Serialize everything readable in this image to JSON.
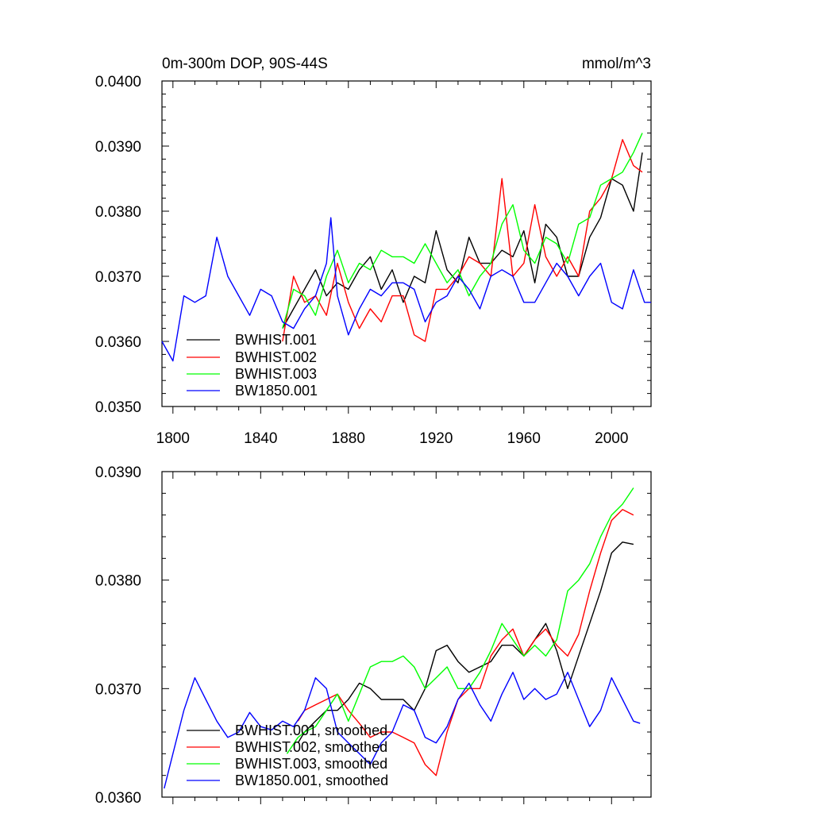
{
  "chart_data": [
    {
      "type": "line",
      "title": "0m-300m DOP, 90S-44S",
      "units": "mmol/m^3",
      "xlim": [
        1795,
        2018
      ],
      "ylim": [
        0.035,
        0.04
      ],
      "yticks": [
        "0.0350",
        "0.0360",
        "0.0370",
        "0.0380",
        "0.0390",
        "0.0400"
      ],
      "yticks_values": [
        0.035,
        0.036,
        0.037,
        0.038,
        0.039,
        0.04
      ],
      "xticks": [
        "1800",
        "1840",
        "1880",
        "1920",
        "1960",
        "2000"
      ],
      "xticks_values": [
        1800,
        1840,
        1880,
        1920,
        1960,
        2000
      ],
      "legend": {
        "placement": "bottom-left"
      },
      "series": [
        {
          "name": "BWHIST.001",
          "color": "#000000",
          "x": [
            1850,
            1855,
            1860,
            1865,
            1870,
            1875,
            1880,
            1885,
            1890,
            1895,
            1900,
            1905,
            1910,
            1915,
            1920,
            1925,
            1930,
            1935,
            1940,
            1945,
            1950,
            1955,
            1960,
            1965,
            1970,
            1975,
            1980,
            1985,
            1990,
            1995,
            2000,
            2005,
            2010,
            2014
          ],
          "y": [
            0.0362,
            0.0365,
            0.0368,
            0.0371,
            0.0367,
            0.0369,
            0.0368,
            0.0371,
            0.0373,
            0.0368,
            0.0371,
            0.0366,
            0.037,
            0.0369,
            0.0377,
            0.0371,
            0.0369,
            0.0376,
            0.0372,
            0.0372,
            0.0374,
            0.0373,
            0.0377,
            0.0369,
            0.0378,
            0.0376,
            0.037,
            0.037,
            0.0376,
            0.0379,
            0.0385,
            0.0384,
            0.038,
            0.0389
          ]
        },
        {
          "name": "BWHIST.002",
          "color": "#ff0000",
          "x": [
            1850,
            1855,
            1860,
            1865,
            1870,
            1875,
            1880,
            1885,
            1890,
            1895,
            1900,
            1905,
            1910,
            1915,
            1920,
            1925,
            1930,
            1935,
            1940,
            1945,
            1950,
            1955,
            1960,
            1965,
            1970,
            1975,
            1980,
            1985,
            1990,
            1995,
            2000,
            2005,
            2010,
            2014
          ],
          "y": [
            0.036,
            0.037,
            0.0366,
            0.0367,
            0.0364,
            0.0372,
            0.0366,
            0.0362,
            0.0365,
            0.0363,
            0.0367,
            0.0367,
            0.0361,
            0.036,
            0.0368,
            0.0368,
            0.037,
            0.0373,
            0.0372,
            0.037,
            0.0385,
            0.037,
            0.0372,
            0.0381,
            0.0373,
            0.037,
            0.0373,
            0.037,
            0.038,
            0.0382,
            0.0385,
            0.0391,
            0.0387,
            0.0386
          ]
        },
        {
          "name": "BWHIST.003",
          "color": "#00ff00",
          "x": [
            1850,
            1855,
            1860,
            1865,
            1870,
            1875,
            1880,
            1885,
            1890,
            1895,
            1900,
            1905,
            1910,
            1915,
            1920,
            1925,
            1930,
            1935,
            1940,
            1945,
            1950,
            1955,
            1960,
            1965,
            1970,
            1975,
            1980,
            1985,
            1990,
            1995,
            2000,
            2005,
            2010,
            2014
          ],
          "y": [
            0.0362,
            0.0368,
            0.0367,
            0.0364,
            0.037,
            0.0374,
            0.0369,
            0.0372,
            0.0371,
            0.0374,
            0.0373,
            0.0373,
            0.0372,
            0.0375,
            0.0372,
            0.0369,
            0.0371,
            0.0367,
            0.037,
            0.0372,
            0.0378,
            0.0381,
            0.0374,
            0.0372,
            0.0376,
            0.0375,
            0.0372,
            0.0378,
            0.0379,
            0.0384,
            0.0385,
            0.0386,
            0.0389,
            0.0392
          ]
        },
        {
          "name": "BW1850.001",
          "color": "#0000ff",
          "x": [
            1795,
            1800,
            1805,
            1810,
            1815,
            1820,
            1825,
            1830,
            1835,
            1840,
            1845,
            1850,
            1855,
            1860,
            1865,
            1870,
            1872,
            1875,
            1880,
            1885,
            1890,
            1895,
            1900,
            1905,
            1910,
            1915,
            1920,
            1925,
            1930,
            1935,
            1940,
            1945,
            1950,
            1955,
            1960,
            1965,
            1970,
            1975,
            1980,
            1985,
            1990,
            1995,
            2000,
            2005,
            2010,
            2015,
            2018
          ],
          "y": [
            0.036,
            0.0357,
            0.0367,
            0.0366,
            0.0367,
            0.0376,
            0.037,
            0.0367,
            0.0364,
            0.0368,
            0.0367,
            0.0363,
            0.0362,
            0.0365,
            0.0367,
            0.0372,
            0.0379,
            0.0367,
            0.0361,
            0.0365,
            0.0368,
            0.0367,
            0.0369,
            0.0369,
            0.0368,
            0.0363,
            0.0366,
            0.0367,
            0.037,
            0.0368,
            0.0365,
            0.037,
            0.0371,
            0.037,
            0.0366,
            0.0366,
            0.0369,
            0.0372,
            0.037,
            0.0367,
            0.037,
            0.0372,
            0.0366,
            0.0365,
            0.0371,
            0.0366,
            0.0366
          ]
        }
      ]
    },
    {
      "type": "line",
      "xlim": [
        1795,
        2018
      ],
      "ylim": [
        0.036,
        0.039
      ],
      "yticks": [
        "0.0360",
        "0.0370",
        "0.0380",
        "0.0390"
      ],
      "yticks_values": [
        0.036,
        0.037,
        0.038,
        0.039
      ],
      "xticks_values": [
        1800,
        1840,
        1880,
        1920,
        1960,
        2000
      ],
      "legend": {
        "placement": "bottom-left"
      },
      "series": [
        {
          "name": "BWHIST.001, smoothed",
          "color": "#000000",
          "x": [
            1857,
            1860,
            1865,
            1870,
            1875,
            1880,
            1885,
            1890,
            1895,
            1900,
            1905,
            1910,
            1915,
            1920,
            1925,
            1930,
            1935,
            1940,
            1945,
            1950,
            1955,
            1960,
            1965,
            1970,
            1975,
            1980,
            1985,
            1990,
            1995,
            2000,
            2005,
            2010
          ],
          "y": [
            0.0365,
            0.0366,
            0.0367,
            0.0368,
            0.0368,
            0.0369,
            0.03705,
            0.037,
            0.0369,
            0.0369,
            0.0369,
            0.0368,
            0.037,
            0.03735,
            0.0374,
            0.03725,
            0.03715,
            0.0372,
            0.03725,
            0.0374,
            0.0374,
            0.0373,
            0.03745,
            0.0376,
            0.03735,
            0.037,
            0.0373,
            0.0376,
            0.0379,
            0.03825,
            0.03835,
            0.03833
          ]
        },
        {
          "name": "BWHIST.002, smoothed",
          "color": "#ff0000",
          "x": [
            1857,
            1860,
            1865,
            1870,
            1875,
            1880,
            1885,
            1890,
            1895,
            1900,
            1905,
            1910,
            1915,
            1920,
            1925,
            1930,
            1935,
            1940,
            1945,
            1950,
            1955,
            1960,
            1965,
            1970,
            1975,
            1980,
            1985,
            1990,
            1995,
            2000,
            2005,
            2010
          ],
          "y": [
            0.0367,
            0.0368,
            0.03685,
            0.0369,
            0.03695,
            0.0368,
            0.03668,
            0.03655,
            0.0366,
            0.0366,
            0.03655,
            0.0365,
            0.0363,
            0.0362,
            0.0366,
            0.0369,
            0.037,
            0.037,
            0.0373,
            0.03745,
            0.03755,
            0.0373,
            0.03745,
            0.03755,
            0.0374,
            0.0373,
            0.0375,
            0.0379,
            0.03825,
            0.03855,
            0.03865,
            0.0386
          ]
        },
        {
          "name": "BWHIST.003, smoothed",
          "color": "#00ff00",
          "x": [
            1852,
            1857,
            1860,
            1865,
            1870,
            1875,
            1880,
            1885,
            1890,
            1895,
            1900,
            1905,
            1910,
            1915,
            1920,
            1925,
            1930,
            1935,
            1940,
            1945,
            1950,
            1955,
            1960,
            1965,
            1970,
            1975,
            1980,
            1985,
            1990,
            1995,
            2000,
            2005,
            2010
          ],
          "y": [
            0.0364,
            0.03655,
            0.0366,
            0.03665,
            0.0368,
            0.03695,
            0.0367,
            0.03695,
            0.0372,
            0.03725,
            0.03725,
            0.0373,
            0.0372,
            0.037,
            0.0371,
            0.0372,
            0.037,
            0.037,
            0.03715,
            0.03735,
            0.0376,
            0.03745,
            0.0373,
            0.0374,
            0.0373,
            0.03745,
            0.0379,
            0.038,
            0.03815,
            0.0384,
            0.0386,
            0.0387,
            0.03885
          ]
        },
        {
          "name": "BW1850.001, smoothed",
          "color": "#0000ff",
          "x": [
            1796,
            1800,
            1805,
            1810,
            1815,
            1820,
            1825,
            1830,
            1835,
            1840,
            1845,
            1850,
            1855,
            1860,
            1865,
            1870,
            1875,
            1880,
            1885,
            1890,
            1895,
            1900,
            1905,
            1910,
            1915,
            1920,
            1925,
            1930,
            1935,
            1940,
            1945,
            1950,
            1955,
            1960,
            1965,
            1970,
            1975,
            1980,
            1985,
            1990,
            1995,
            2000,
            2005,
            2010,
            2013
          ],
          "y": [
            0.03608,
            0.0364,
            0.0368,
            0.0371,
            0.0369,
            0.0367,
            0.03655,
            0.0366,
            0.03678,
            0.03665,
            0.03662,
            0.0367,
            0.03665,
            0.0368,
            0.0371,
            0.037,
            0.0366,
            0.0365,
            0.0364,
            0.0363,
            0.0365,
            0.0366,
            0.03685,
            0.0368,
            0.03655,
            0.0365,
            0.03665,
            0.0369,
            0.03705,
            0.03685,
            0.0367,
            0.03695,
            0.03715,
            0.0369,
            0.037,
            0.0369,
            0.03695,
            0.03715,
            0.0369,
            0.03665,
            0.0368,
            0.0371,
            0.0369,
            0.0367,
            0.03668
          ]
        }
      ]
    }
  ]
}
